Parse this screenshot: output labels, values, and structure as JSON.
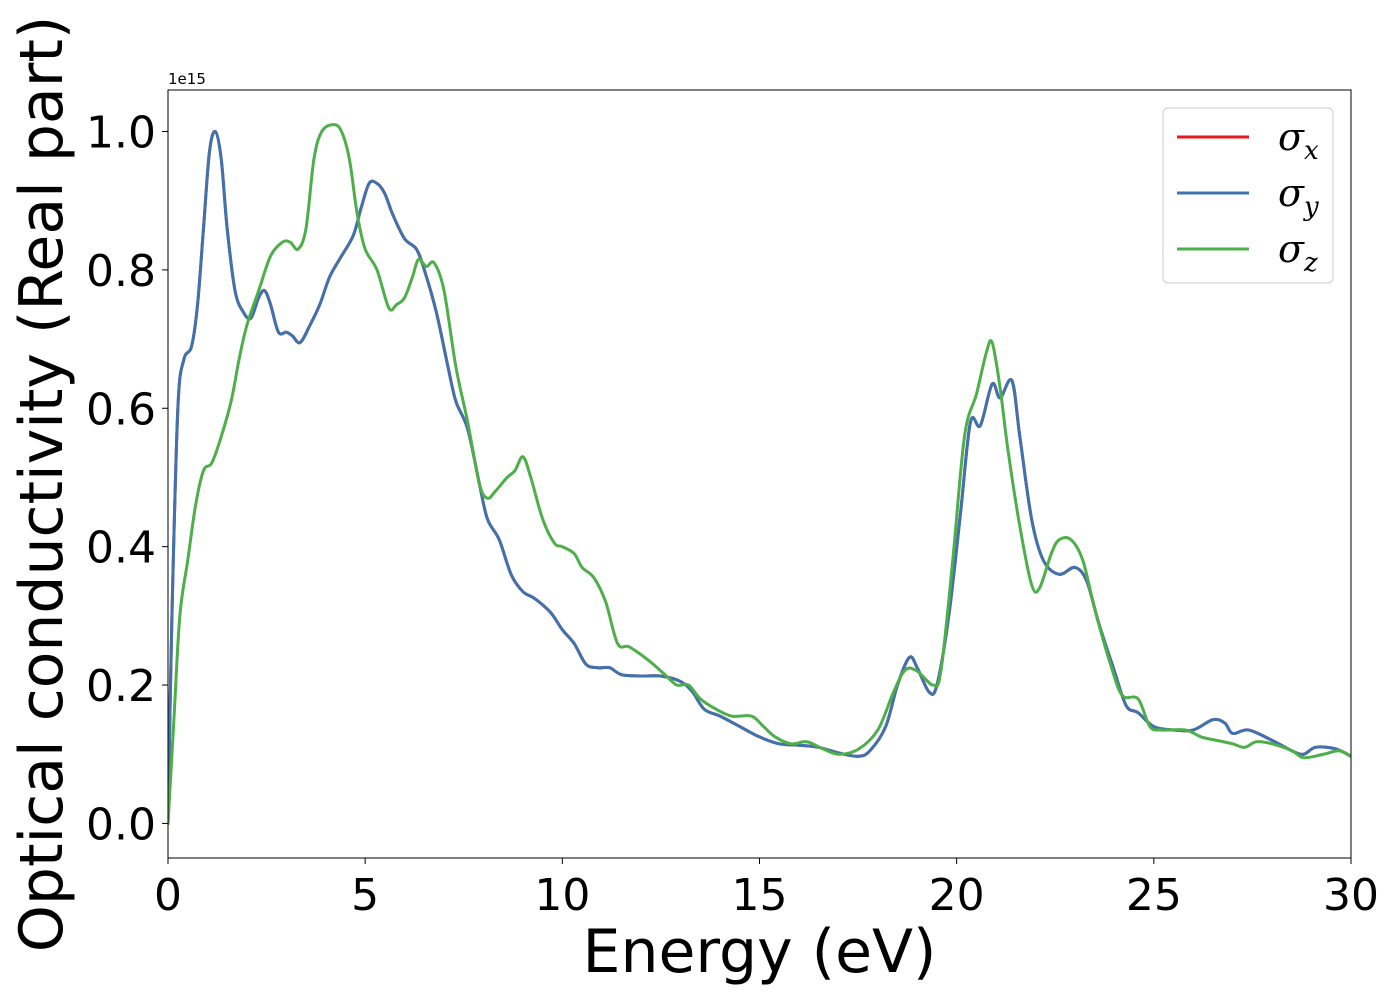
{
  "chart_data": {
    "type": "line",
    "xlabel": "Energy (eV)",
    "ylabel": "Optical conductivity (Real part)",
    "y_offset_label": "1e15",
    "xlim": [
      0,
      30
    ],
    "ylim": [
      -0.05,
      1.06
    ],
    "x_ticks": [
      0,
      5,
      10,
      15,
      20,
      25,
      30
    ],
    "x_tick_labels": [
      "0",
      "5",
      "10",
      "15",
      "20",
      "25",
      "30"
    ],
    "y_ticks": [
      0.0,
      0.2,
      0.4,
      0.6,
      0.8,
      1.0
    ],
    "y_tick_labels": [
      "0.0",
      "0.2",
      "0.4",
      "0.6",
      "0.8",
      "1.0"
    ],
    "grid": false,
    "legend_position": "top-right",
    "series": [
      {
        "name": "σx",
        "symbol": "σ",
        "subscript": "x",
        "color": "#e41a1c",
        "points": [
          [
            0,
            0.0
          ],
          [
            0.1,
            0.3
          ],
          [
            0.25,
            0.6
          ],
          [
            0.4,
            0.67
          ],
          [
            0.6,
            0.69
          ],
          [
            0.75,
            0.75
          ],
          [
            0.9,
            0.86
          ],
          [
            1.05,
            0.97
          ],
          [
            1.2,
            1.0
          ],
          [
            1.35,
            0.96
          ],
          [
            1.5,
            0.86
          ],
          [
            1.7,
            0.77
          ],
          [
            1.9,
            0.74
          ],
          [
            2.1,
            0.73
          ],
          [
            2.3,
            0.76
          ],
          [
            2.45,
            0.77
          ],
          [
            2.6,
            0.75
          ],
          [
            2.8,
            0.71
          ],
          [
            3.0,
            0.71
          ],
          [
            3.15,
            0.705
          ],
          [
            3.35,
            0.695
          ],
          [
            3.6,
            0.72
          ],
          [
            3.85,
            0.75
          ],
          [
            4.1,
            0.79
          ],
          [
            4.4,
            0.82
          ],
          [
            4.7,
            0.85
          ],
          [
            4.9,
            0.89
          ],
          [
            5.1,
            0.925
          ],
          [
            5.3,
            0.925
          ],
          [
            5.5,
            0.91
          ],
          [
            5.7,
            0.88
          ],
          [
            6.0,
            0.845
          ],
          [
            6.3,
            0.83
          ],
          [
            6.5,
            0.8
          ],
          [
            6.8,
            0.74
          ],
          [
            7.1,
            0.66
          ],
          [
            7.3,
            0.61
          ],
          [
            7.6,
            0.57
          ],
          [
            7.9,
            0.49
          ],
          [
            8.1,
            0.44
          ],
          [
            8.4,
            0.41
          ],
          [
            8.7,
            0.36
          ],
          [
            9.0,
            0.335
          ],
          [
            9.3,
            0.325
          ],
          [
            9.7,
            0.305
          ],
          [
            10.0,
            0.28
          ],
          [
            10.3,
            0.26
          ],
          [
            10.6,
            0.23
          ],
          [
            10.9,
            0.225
          ],
          [
            11.2,
            0.225
          ],
          [
            11.5,
            0.215
          ],
          [
            12.0,
            0.213
          ],
          [
            12.5,
            0.213
          ],
          [
            13.0,
            0.205
          ],
          [
            13.3,
            0.19
          ],
          [
            13.6,
            0.165
          ],
          [
            14.0,
            0.155
          ],
          [
            14.5,
            0.14
          ],
          [
            15.0,
            0.125
          ],
          [
            15.5,
            0.115
          ],
          [
            16.0,
            0.113
          ],
          [
            16.5,
            0.11
          ],
          [
            17.0,
            0.102
          ],
          [
            17.5,
            0.097
          ],
          [
            17.8,
            0.105
          ],
          [
            18.2,
            0.14
          ],
          [
            18.5,
            0.2
          ],
          [
            18.8,
            0.24
          ],
          [
            19.0,
            0.225
          ],
          [
            19.3,
            0.19
          ],
          [
            19.5,
            0.2
          ],
          [
            19.8,
            0.3
          ],
          [
            20.1,
            0.45
          ],
          [
            20.35,
            0.58
          ],
          [
            20.6,
            0.575
          ],
          [
            20.9,
            0.635
          ],
          [
            21.1,
            0.615
          ],
          [
            21.4,
            0.64
          ],
          [
            21.6,
            0.56
          ],
          [
            21.9,
            0.44
          ],
          [
            22.2,
            0.38
          ],
          [
            22.6,
            0.36
          ],
          [
            23.0,
            0.37
          ],
          [
            23.3,
            0.35
          ],
          [
            23.6,
            0.29
          ],
          [
            24.0,
            0.22
          ],
          [
            24.3,
            0.17
          ],
          [
            24.6,
            0.16
          ],
          [
            25.0,
            0.14
          ],
          [
            25.5,
            0.135
          ],
          [
            26.0,
            0.135
          ],
          [
            26.5,
            0.15
          ],
          [
            26.8,
            0.145
          ],
          [
            27.0,
            0.13
          ],
          [
            27.4,
            0.135
          ],
          [
            28.0,
            0.12
          ],
          [
            28.5,
            0.105
          ],
          [
            28.8,
            0.1
          ],
          [
            29.1,
            0.11
          ],
          [
            29.6,
            0.108
          ],
          [
            30.0,
            0.097
          ]
        ]
      },
      {
        "name": "σy",
        "symbol": "σ",
        "subscript": "y",
        "color": "#3f73ad",
        "points": [
          [
            0,
            0.0
          ],
          [
            0.1,
            0.3
          ],
          [
            0.25,
            0.6
          ],
          [
            0.4,
            0.67
          ],
          [
            0.6,
            0.69
          ],
          [
            0.75,
            0.75
          ],
          [
            0.9,
            0.86
          ],
          [
            1.05,
            0.97
          ],
          [
            1.2,
            1.0
          ],
          [
            1.35,
            0.96
          ],
          [
            1.5,
            0.86
          ],
          [
            1.7,
            0.77
          ],
          [
            1.9,
            0.74
          ],
          [
            2.1,
            0.73
          ],
          [
            2.3,
            0.76
          ],
          [
            2.45,
            0.77
          ],
          [
            2.6,
            0.75
          ],
          [
            2.8,
            0.71
          ],
          [
            3.0,
            0.71
          ],
          [
            3.15,
            0.705
          ],
          [
            3.35,
            0.695
          ],
          [
            3.6,
            0.72
          ],
          [
            3.85,
            0.75
          ],
          [
            4.1,
            0.79
          ],
          [
            4.4,
            0.82
          ],
          [
            4.7,
            0.85
          ],
          [
            4.9,
            0.89
          ],
          [
            5.1,
            0.925
          ],
          [
            5.3,
            0.925
          ],
          [
            5.5,
            0.91
          ],
          [
            5.7,
            0.88
          ],
          [
            6.0,
            0.845
          ],
          [
            6.3,
            0.83
          ],
          [
            6.5,
            0.8
          ],
          [
            6.8,
            0.74
          ],
          [
            7.1,
            0.66
          ],
          [
            7.3,
            0.61
          ],
          [
            7.6,
            0.57
          ],
          [
            7.9,
            0.49
          ],
          [
            8.1,
            0.44
          ],
          [
            8.4,
            0.41
          ],
          [
            8.7,
            0.36
          ],
          [
            9.0,
            0.335
          ],
          [
            9.3,
            0.325
          ],
          [
            9.7,
            0.305
          ],
          [
            10.0,
            0.28
          ],
          [
            10.3,
            0.26
          ],
          [
            10.6,
            0.23
          ],
          [
            10.9,
            0.225
          ],
          [
            11.2,
            0.225
          ],
          [
            11.5,
            0.215
          ],
          [
            12.0,
            0.213
          ],
          [
            12.5,
            0.213
          ],
          [
            13.0,
            0.205
          ],
          [
            13.3,
            0.19
          ],
          [
            13.6,
            0.165
          ],
          [
            14.0,
            0.155
          ],
          [
            14.5,
            0.14
          ],
          [
            15.0,
            0.125
          ],
          [
            15.5,
            0.115
          ],
          [
            16.0,
            0.113
          ],
          [
            16.5,
            0.11
          ],
          [
            17.0,
            0.102
          ],
          [
            17.5,
            0.097
          ],
          [
            17.8,
            0.105
          ],
          [
            18.2,
            0.14
          ],
          [
            18.5,
            0.2
          ],
          [
            18.8,
            0.24
          ],
          [
            19.0,
            0.225
          ],
          [
            19.3,
            0.19
          ],
          [
            19.5,
            0.2
          ],
          [
            19.8,
            0.3
          ],
          [
            20.1,
            0.45
          ],
          [
            20.35,
            0.58
          ],
          [
            20.6,
            0.575
          ],
          [
            20.9,
            0.635
          ],
          [
            21.1,
            0.615
          ],
          [
            21.4,
            0.64
          ],
          [
            21.6,
            0.56
          ],
          [
            21.9,
            0.44
          ],
          [
            22.2,
            0.38
          ],
          [
            22.6,
            0.36
          ],
          [
            23.0,
            0.37
          ],
          [
            23.3,
            0.35
          ],
          [
            23.6,
            0.29
          ],
          [
            24.0,
            0.22
          ],
          [
            24.3,
            0.17
          ],
          [
            24.6,
            0.16
          ],
          [
            25.0,
            0.14
          ],
          [
            25.5,
            0.135
          ],
          [
            26.0,
            0.135
          ],
          [
            26.5,
            0.15
          ],
          [
            26.8,
            0.145
          ],
          [
            27.0,
            0.13
          ],
          [
            27.4,
            0.135
          ],
          [
            28.0,
            0.12
          ],
          [
            28.5,
            0.105
          ],
          [
            28.8,
            0.1
          ],
          [
            29.1,
            0.11
          ],
          [
            29.6,
            0.108
          ],
          [
            30.0,
            0.097
          ]
        ]
      },
      {
        "name": "σz",
        "symbol": "σ",
        "subscript": "z",
        "color": "#4daf4a",
        "points": [
          [
            0,
            0.0
          ],
          [
            0.15,
            0.15
          ],
          [
            0.3,
            0.3
          ],
          [
            0.5,
            0.38
          ],
          [
            0.7,
            0.46
          ],
          [
            0.9,
            0.51
          ],
          [
            1.1,
            0.52
          ],
          [
            1.3,
            0.55
          ],
          [
            1.6,
            0.61
          ],
          [
            1.8,
            0.67
          ],
          [
            2.0,
            0.72
          ],
          [
            2.3,
            0.77
          ],
          [
            2.6,
            0.82
          ],
          [
            2.9,
            0.84
          ],
          [
            3.1,
            0.84
          ],
          [
            3.3,
            0.83
          ],
          [
            3.5,
            0.86
          ],
          [
            3.7,
            0.96
          ],
          [
            3.9,
            1.0
          ],
          [
            4.2,
            1.01
          ],
          [
            4.4,
            1.0
          ],
          [
            4.6,
            0.96
          ],
          [
            4.8,
            0.88
          ],
          [
            5.0,
            0.83
          ],
          [
            5.3,
            0.8
          ],
          [
            5.6,
            0.745
          ],
          [
            5.8,
            0.75
          ],
          [
            6.0,
            0.76
          ],
          [
            6.2,
            0.79
          ],
          [
            6.35,
            0.815
          ],
          [
            6.55,
            0.805
          ],
          [
            6.75,
            0.81
          ],
          [
            7.0,
            0.77
          ],
          [
            7.3,
            0.66
          ],
          [
            7.6,
            0.58
          ],
          [
            7.9,
            0.49
          ],
          [
            8.1,
            0.47
          ],
          [
            8.3,
            0.48
          ],
          [
            8.6,
            0.5
          ],
          [
            8.8,
            0.51
          ],
          [
            9.0,
            0.53
          ],
          [
            9.2,
            0.5
          ],
          [
            9.5,
            0.44
          ],
          [
            9.8,
            0.405
          ],
          [
            10.0,
            0.4
          ],
          [
            10.3,
            0.39
          ],
          [
            10.5,
            0.37
          ],
          [
            10.8,
            0.355
          ],
          [
            11.1,
            0.32
          ],
          [
            11.4,
            0.26
          ],
          [
            11.7,
            0.255
          ],
          [
            12.2,
            0.235
          ],
          [
            12.6,
            0.215
          ],
          [
            12.9,
            0.2
          ],
          [
            13.2,
            0.2
          ],
          [
            13.5,
            0.18
          ],
          [
            13.9,
            0.165
          ],
          [
            14.3,
            0.155
          ],
          [
            14.8,
            0.155
          ],
          [
            15.1,
            0.14
          ],
          [
            15.4,
            0.125
          ],
          [
            15.8,
            0.115
          ],
          [
            16.2,
            0.118
          ],
          [
            16.6,
            0.108
          ],
          [
            17.0,
            0.1
          ],
          [
            17.5,
            0.107
          ],
          [
            18.0,
            0.135
          ],
          [
            18.4,
            0.19
          ],
          [
            18.7,
            0.222
          ],
          [
            19.0,
            0.22
          ],
          [
            19.4,
            0.2
          ],
          [
            19.6,
            0.22
          ],
          [
            19.9,
            0.38
          ],
          [
            20.2,
            0.56
          ],
          [
            20.5,
            0.62
          ],
          [
            20.75,
            0.68
          ],
          [
            20.9,
            0.695
          ],
          [
            21.1,
            0.63
          ],
          [
            21.3,
            0.54
          ],
          [
            21.6,
            0.43
          ],
          [
            21.9,
            0.345
          ],
          [
            22.1,
            0.34
          ],
          [
            22.4,
            0.39
          ],
          [
            22.6,
            0.41
          ],
          [
            22.9,
            0.41
          ],
          [
            23.2,
            0.38
          ],
          [
            23.5,
            0.31
          ],
          [
            23.9,
            0.23
          ],
          [
            24.2,
            0.185
          ],
          [
            24.6,
            0.18
          ],
          [
            24.9,
            0.14
          ],
          [
            25.2,
            0.135
          ],
          [
            25.8,
            0.135
          ],
          [
            26.2,
            0.125
          ],
          [
            26.6,
            0.12
          ],
          [
            27.0,
            0.115
          ],
          [
            27.3,
            0.11
          ],
          [
            27.6,
            0.118
          ],
          [
            28.0,
            0.115
          ],
          [
            28.5,
            0.105
          ],
          [
            28.8,
            0.095
          ],
          [
            29.3,
            0.1
          ],
          [
            29.7,
            0.105
          ],
          [
            30.0,
            0.097
          ]
        ]
      }
    ]
  }
}
